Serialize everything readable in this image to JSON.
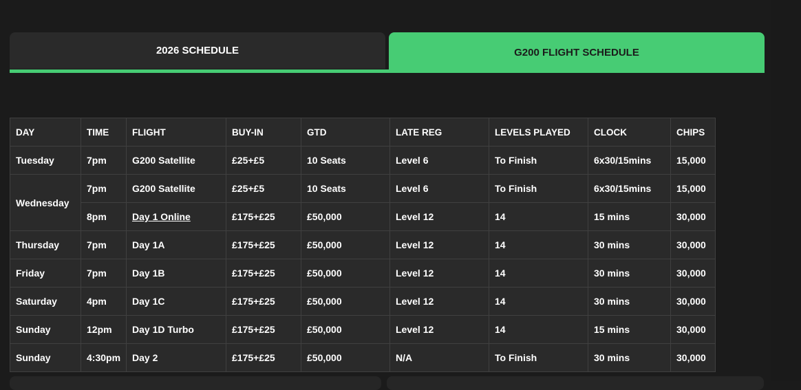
{
  "tabs": [
    {
      "label": "2026 SCHEDULE",
      "active": false
    },
    {
      "label": "G200 FLIGHT SCHEDULE",
      "active": true
    }
  ],
  "accent_color": "#47cc74",
  "table": {
    "headers": [
      "DAY",
      "TIME",
      "FLIGHT",
      "BUY-IN",
      "GTD",
      "LATE REG",
      "LEVELS PLAYED",
      "CLOCK",
      "CHIPS"
    ],
    "rows": [
      {
        "day": "Tuesday",
        "time": "7pm",
        "flight": "G200 Satellite",
        "buyin": "£25+£5",
        "gtd": "10 Seats",
        "late_reg": "Level 6",
        "levels": "To Finish",
        "clock": "6x30/15mins",
        "chips": "15,000"
      },
      {
        "day": "Wednesday",
        "time": "7pm",
        "flight": "G200 Satellite",
        "buyin": "£25+£5",
        "gtd": "10 Seats",
        "late_reg": "Level 6",
        "levels": "To Finish",
        "clock": "6x30/15mins",
        "chips": "15,000"
      },
      {
        "day": "",
        "time": "8pm",
        "flight": "Day 1 Online",
        "buyin": "£175+£25",
        "gtd": "£50,000",
        "late_reg": "Level 12",
        "levels": "14",
        "clock": "15 mins",
        "chips": "30,000"
      },
      {
        "day": "Thursday",
        "time": "7pm",
        "flight": "Day 1A",
        "buyin": "£175+£25",
        "gtd": "£50,000",
        "late_reg": "Level 12",
        "levels": "14",
        "clock": "30 mins",
        "chips": "30,000"
      },
      {
        "day": "Friday",
        "time": "7pm",
        "flight": "Day 1B",
        "buyin": "£175+£25",
        "gtd": "£50,000",
        "late_reg": "Level 12",
        "levels": "14",
        "clock": "30 mins",
        "chips": "30,000"
      },
      {
        "day": "Saturday",
        "time": "4pm",
        "flight": "Day 1C",
        "buyin": "£175+£25",
        "gtd": "£50,000",
        "late_reg": "Level 12",
        "levels": "14",
        "clock": "30 mins",
        "chips": "30,000"
      },
      {
        "day": "Sunday",
        "time": "12pm",
        "flight": "Day 1D Turbo",
        "buyin": "£175+£25",
        "gtd": "£50,000",
        "late_reg": "Level 12",
        "levels": "14",
        "clock": "15 mins",
        "chips": "30,000"
      },
      {
        "day": "Sunday",
        "time": "4:30pm",
        "flight": "Day 2",
        "buyin": "£175+£25",
        "gtd": "£50,000",
        "late_reg": "N/A",
        "levels": "To Finish",
        "clock": "30 mins",
        "chips": "30,000"
      }
    ]
  }
}
